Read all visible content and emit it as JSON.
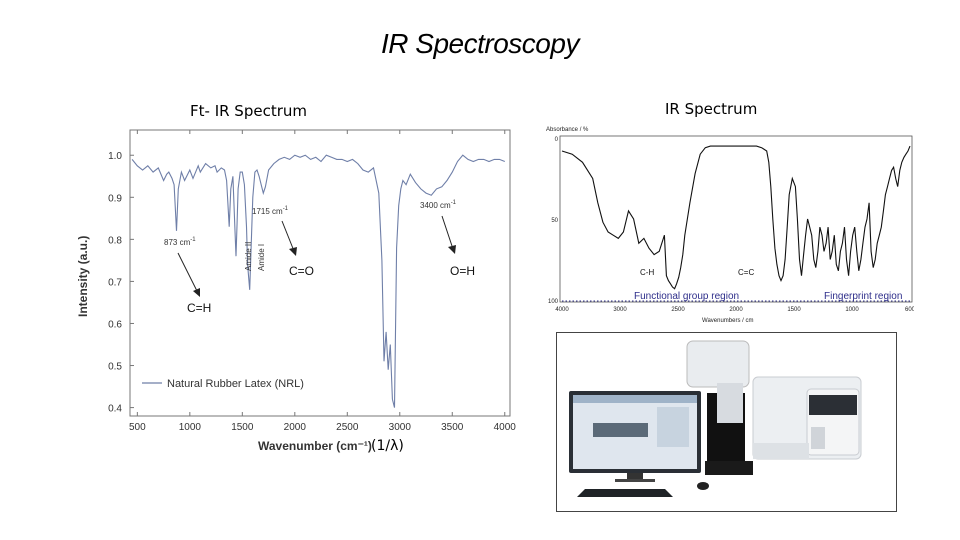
{
  "slide": {
    "title": "IR Spectroscopy",
    "left_heading": "Ft- IR Spectrum",
    "right_heading": "IR Spectrum",
    "unit_note": "(1/λ)"
  },
  "chart_data": [
    {
      "type": "line",
      "title": "",
      "xlabel": "Wavenumber (cm⁻¹)",
      "ylabel": "Intensity (a.u.)",
      "xlim": [
        430,
        4050
      ],
      "ylim": [
        0.38,
        1.06
      ],
      "x_ticks": [
        500,
        1000,
        1500,
        2000,
        2500,
        3000,
        3500,
        4000
      ],
      "y_ticks": [
        0.4,
        0.5,
        0.6,
        0.7,
        0.8,
        0.9,
        1.0
      ],
      "x_tick_labels": [
        "500",
        "1000",
        "1500",
        "2000",
        "2500",
        "3000",
        "3500",
        "4000"
      ],
      "y_tick_labels": [
        "0.4",
        "0.5",
        "0.6",
        "0.7",
        "0.8",
        "0.9",
        "1.0"
      ],
      "legend": "bottom-left",
      "line_color": "#6f7fa8",
      "series": [
        {
          "name": "Natural Rubber Latex (NRL)",
          "x": [
            450,
            500,
            550,
            600,
            650,
            700,
            750,
            780,
            800,
            830,
            850,
            873,
            890,
            920,
            950,
            980,
            1000,
            1030,
            1080,
            1100,
            1150,
            1200,
            1240,
            1260,
            1300,
            1330,
            1350,
            1375,
            1390,
            1410,
            1430,
            1440,
            1450,
            1460,
            1480,
            1500,
            1520,
            1540,
            1550,
            1570,
            1600,
            1620,
            1640,
            1660,
            1680,
            1700,
            1720,
            1750,
            1800,
            1850,
            1900,
            1950,
            2000,
            2050,
            2100,
            2150,
            2200,
            2250,
            2300,
            2350,
            2400,
            2450,
            2500,
            2550,
            2600,
            2650,
            2700,
            2750,
            2800,
            2830,
            2850,
            2870,
            2890,
            2910,
            2930,
            2950,
            2970,
            2990,
            3010,
            3030,
            3060,
            3100,
            3150,
            3200,
            3250,
            3300,
            3350,
            3400,
            3450,
            3500,
            3550,
            3600,
            3650,
            3700,
            3750,
            3800,
            3850,
            3900,
            3950,
            4000
          ],
          "y": [
            0.99,
            0.975,
            0.965,
            0.975,
            0.96,
            0.97,
            0.94,
            0.955,
            0.96,
            0.945,
            0.93,
            0.82,
            0.92,
            0.96,
            0.94,
            0.955,
            0.965,
            0.945,
            0.975,
            0.96,
            0.98,
            0.97,
            0.975,
            0.96,
            0.97,
            0.965,
            0.94,
            0.83,
            0.92,
            0.95,
            0.82,
            0.76,
            0.84,
            0.92,
            0.96,
            0.96,
            0.93,
            0.83,
            0.74,
            0.68,
            0.9,
            0.96,
            0.965,
            0.95,
            0.93,
            0.91,
            0.925,
            0.965,
            0.98,
            0.99,
            0.995,
            0.99,
            1.0,
            0.995,
            1.0,
            0.99,
            0.995,
            0.985,
            1.0,
            0.995,
            0.99,
            0.99,
            0.985,
            0.99,
            0.98,
            0.965,
            0.96,
            0.97,
            0.91,
            0.75,
            0.51,
            0.58,
            0.49,
            0.55,
            0.42,
            0.4,
            0.78,
            0.88,
            0.92,
            0.94,
            0.93,
            0.955,
            0.935,
            0.92,
            0.91,
            0.905,
            0.92,
            0.925,
            0.94,
            0.96,
            0.985,
            1.0,
            0.99,
            0.985,
            0.99,
            0.99,
            0.985,
            0.99,
            0.99,
            0.985
          ]
        }
      ],
      "annotations": [
        {
          "text": "873 cm",
          "sup": "-1",
          "label": "C=H"
        },
        {
          "text": "1715 cm",
          "sup": "-1",
          "label": "C=O"
        },
        {
          "text": "3400 cm",
          "sup": "-1",
          "label": "O=H"
        },
        {
          "text": "Amide II"
        },
        {
          "text": "Amide I"
        }
      ]
    },
    {
      "type": "line",
      "title": "",
      "y_axis_caption": "Absorbance / %",
      "x_axis_caption": "Wavenumbers / cm",
      "xlim": [
        4000,
        600
      ],
      "ylim": [
        100,
        0
      ],
      "x_tick_labels": [
        "4000",
        "3000",
        "2500",
        "2000",
        "1500",
        "1000",
        "600"
      ],
      "y_tick_labels": [
        "0",
        "50",
        "100"
      ],
      "line_color": "#111111",
      "region_color": "#2d2d8a",
      "x": [
        4000,
        3900,
        3800,
        3700,
        3650,
        3600,
        3550,
        3500,
        3450,
        3400,
        3350,
        3300,
        3250,
        3200,
        3150,
        3100,
        3050,
        3000,
        2980,
        2960,
        2940,
        2920,
        2900,
        2880,
        2860,
        2840,
        2820,
        2800,
        2750,
        2700,
        2650,
        2600,
        2550,
        2500,
        2450,
        2400,
        2300,
        2200,
        2100,
        2050,
        2000,
        1980,
        1960,
        1940,
        1920,
        1900,
        1880,
        1860,
        1840,
        1820,
        1800,
        1780,
        1750,
        1720,
        1700,
        1680,
        1660,
        1640,
        1620,
        1600,
        1580,
        1560,
        1540,
        1520,
        1500,
        1480,
        1460,
        1440,
        1420,
        1400,
        1380,
        1360,
        1340,
        1320,
        1300,
        1280,
        1260,
        1240,
        1220,
        1200,
        1180,
        1160,
        1140,
        1120,
        1100,
        1080,
        1060,
        1040,
        1020,
        1000,
        980,
        960,
        940,
        920,
        900,
        880,
        860,
        840,
        820,
        800,
        780,
        760,
        740,
        720,
        700,
        680,
        660,
        640,
        620,
        600
      ],
      "y": [
        8,
        10,
        15,
        25,
        40,
        52,
        58,
        60,
        62,
        58,
        45,
        50,
        65,
        62,
        68,
        72,
        70,
        60,
        85,
        88,
        90,
        92,
        93,
        90,
        86,
        80,
        72,
        60,
        40,
        22,
        10,
        6,
        5,
        5,
        5,
        5,
        5,
        5,
        5,
        6,
        8,
        15,
        30,
        50,
        68,
        78,
        85,
        88,
        85,
        75,
        55,
        35,
        25,
        30,
        50,
        75,
        85,
        72,
        60,
        50,
        55,
        60,
        75,
        80,
        70,
        55,
        60,
        70,
        65,
        55,
        75,
        70,
        60,
        78,
        82,
        70,
        65,
        55,
        75,
        85,
        70,
        60,
        55,
        70,
        82,
        75,
        65,
        55,
        50,
        40,
        70,
        80,
        75,
        65,
        60,
        55,
        45,
        35,
        30,
        25,
        20,
        18,
        25,
        30,
        20,
        15,
        12,
        10,
        8,
        5
      ],
      "annotations": [
        {
          "text": "C-H"
        },
        {
          "text": "C=C"
        },
        {
          "text": "Functional group region"
        },
        {
          "text": "Fingerprint region"
        }
      ]
    }
  ],
  "photo": {
    "subject": "FT-IR spectrometer with computer workstation",
    "icon": "spectrometer-photo"
  }
}
